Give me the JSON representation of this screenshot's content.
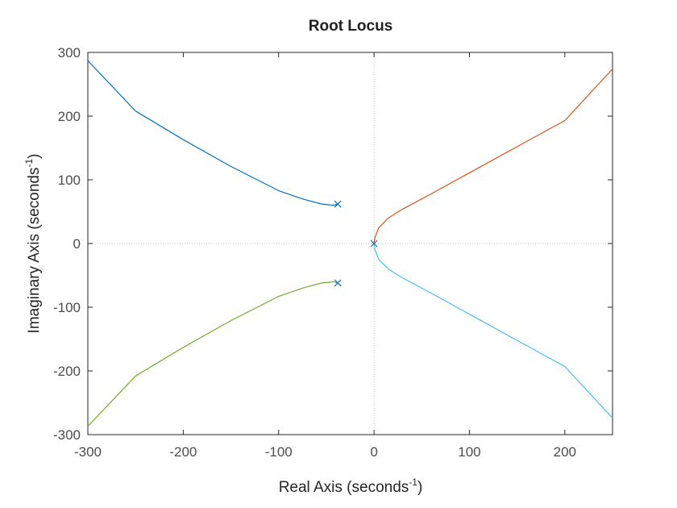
{
  "chart_data": {
    "type": "line",
    "title": "Root Locus",
    "xlabel": {
      "main": "Real Axis (seconds",
      "sup": "-1",
      "close": ")"
    },
    "ylabel": {
      "main": "Imaginary Axis (seconds",
      "sup": "-1",
      "close": ")"
    },
    "xlim": [
      -300,
      250
    ],
    "ylim": [
      -300,
      300
    ],
    "x_ticks": [
      -300,
      -200,
      -100,
      0,
      100,
      200
    ],
    "y_ticks": [
      -300,
      -200,
      -100,
      0,
      100,
      200,
      300
    ],
    "x_tick_labels": [
      "-300",
      "-200",
      "-100",
      "0",
      "100",
      "200"
    ],
    "y_tick_labels": [
      "-300",
      "-200",
      "-100",
      "0",
      "100",
      "200",
      "300"
    ],
    "grid": false,
    "zero_reference_lines": true,
    "poles": [
      {
        "x": -38,
        "y": 62
      },
      {
        "x": -38,
        "y": -62
      },
      {
        "x": 0,
        "y": 0
      }
    ],
    "series": [
      {
        "color": "#0072bd",
        "points": [
          [
            -38,
            62
          ],
          [
            -42,
            60
          ],
          [
            -55,
            62
          ],
          [
            -75,
            70
          ],
          [
            -100,
            83
          ],
          [
            -150,
            121
          ],
          [
            -200,
            163
          ],
          [
            -250,
            208
          ],
          [
            -300,
            287
          ]
        ]
      },
      {
        "color": "#77ac30",
        "points": [
          [
            -38,
            -62
          ],
          [
            -42,
            -60
          ],
          [
            -55,
            -62
          ],
          [
            -75,
            -70
          ],
          [
            -100,
            -83
          ],
          [
            -150,
            -121
          ],
          [
            -200,
            -163
          ],
          [
            -250,
            -208
          ],
          [
            -300,
            -287
          ]
        ]
      },
      {
        "color": "#d95319",
        "points": [
          [
            0,
            0
          ],
          [
            1,
            10
          ],
          [
            5,
            25
          ],
          [
            15,
            40
          ],
          [
            30,
            54
          ],
          [
            60,
            78
          ],
          [
            100,
            111
          ],
          [
            150,
            152
          ],
          [
            200,
            193
          ],
          [
            250,
            274
          ]
        ]
      },
      {
        "color": "#4dbeee",
        "points": [
          [
            0,
            0
          ],
          [
            1,
            -10
          ],
          [
            5,
            -25
          ],
          [
            15,
            -40
          ],
          [
            30,
            -54
          ],
          [
            60,
            -78
          ],
          [
            100,
            -111
          ],
          [
            150,
            -152
          ],
          [
            200,
            -193
          ],
          [
            250,
            -274
          ]
        ]
      }
    ]
  }
}
